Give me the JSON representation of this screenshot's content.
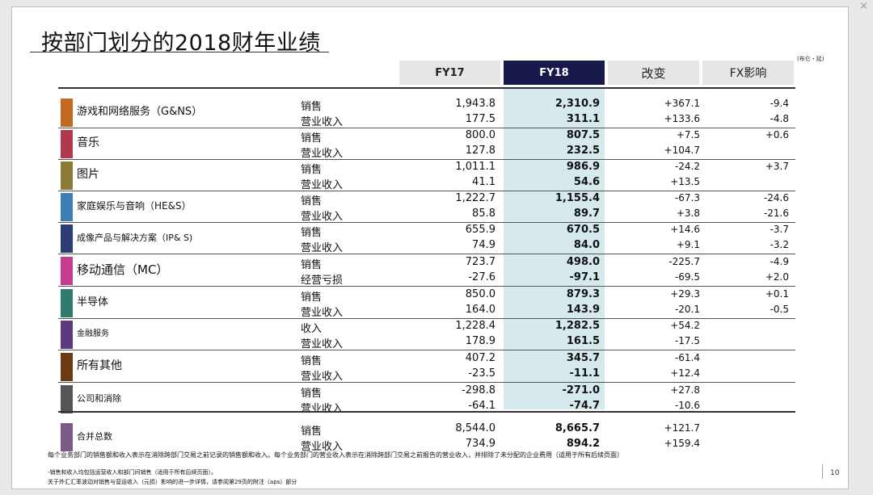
{
  "title": "按部门划分的2018财年业绩",
  "unit_note": "(布仑・延)",
  "columns": {
    "fy17": "FY17",
    "fy18": "FY18",
    "change": "改变",
    "fx": "FX影响"
  },
  "segments": [
    {
      "name": "游戏和网络服务（G&NS）",
      "color": "#c26a21",
      "m1": "销售",
      "fy17_1": "1,943.8",
      "fy18_1": "2,310.9",
      "chg_1": "+367.1",
      "fx_1": "-9.4",
      "m2": "营业收入",
      "fy17_2": "177.5",
      "fy18_2": "311.1",
      "chg_2": "+133.6",
      "fx_2": "-4.8"
    },
    {
      "name": "音乐",
      "color": "#b1394e",
      "m1": "销售",
      "fy17_1": "800.0",
      "fy18_1": "807.5",
      "chg_1": "+7.5",
      "fx_1": "+0.6",
      "m2": "营业收入",
      "fy17_2": "127.8",
      "fy18_2": "232.5",
      "chg_2": "+104.7",
      "fx_2": ""
    },
    {
      "name": "图片",
      "color": "#8d7a36",
      "m1": "销售",
      "fy17_1": "1,011.1",
      "fy18_1": "986.9",
      "chg_1": "-24.2",
      "fx_1": "+3.7",
      "m2": "营业收入",
      "fy17_2": "41.1",
      "fy18_2": "54.6",
      "chg_2": "+13.5",
      "fx_2": ""
    },
    {
      "name": "家庭娱乐与音响（HE&S）",
      "color": "#3d7fb4",
      "m1": "销售",
      "fy17_1": "1,222.7",
      "fy18_1": "1,155.4",
      "chg_1": "-67.3",
      "fx_1": "-24.6",
      "m2": "营业收入",
      "fy17_2": "85.8",
      "fy18_2": "89.7",
      "chg_2": "+3.8",
      "fx_2": "-21.6"
    },
    {
      "name": "成像产品与解决方案（IP& S)",
      "color": "#2f3d76",
      "m1": "销售",
      "fy17_1": "655.9",
      "fy18_1": "670.5",
      "chg_1": "+14.6",
      "fx_1": "-3.7",
      "m2": "营业收入",
      "fy17_2": "74.9",
      "fy18_2": "84.0",
      "chg_2": "+9.1",
      "fx_2": "-3.2"
    },
    {
      "name": "移动通信（MC）",
      "color": "#c43c8e",
      "m1": "销售",
      "fy17_1": "723.7",
      "fy18_1": "498.0",
      "chg_1": "-225.7",
      "fx_1": "-4.9",
      "m2": "经营亏损",
      "fy17_2": "-27.6",
      "fy18_2": "-97.1",
      "chg_2": "-69.5",
      "fx_2": "+2.0"
    },
    {
      "name": "半导体",
      "color": "#2f7b70",
      "m1": "销售",
      "fy17_1": "850.0",
      "fy18_1": "879.3",
      "chg_1": "+29.3",
      "fx_1": "+0.1",
      "m2": "营业收入",
      "fy17_2": "164.0",
      "fy18_2": "143.9",
      "chg_2": "-20.1",
      "fx_2": "-0.5"
    },
    {
      "name": "金融服务",
      "color": "#5a3a7b",
      "m1": "收入",
      "fy17_1": "1,228.4",
      "fy18_1": "1,282.5",
      "chg_1": "+54.2",
      "fx_1": "",
      "m2": "营业收入",
      "fy17_2": "178.9",
      "fy18_2": "161.5",
      "chg_2": "-17.5",
      "fx_2": ""
    },
    {
      "name": "所有其他",
      "color": "#6b3a14",
      "m1": "销售",
      "fy17_1": "407.2",
      "fy18_1": "345.7",
      "chg_1": "-61.4",
      "fx_1": "",
      "m2": "营业收入",
      "fy17_2": "-23.5",
      "fy18_2": "-11.1",
      "chg_2": "+12.4",
      "fx_2": ""
    },
    {
      "name": "公司和消除",
      "color": "#555555",
      "m1": "销售",
      "fy17_1": "-298.8",
      "fy18_1": "-271.0",
      "chg_1": "+27.8",
      "fx_1": "",
      "m2": "营业收入",
      "fy17_2": "-64.1",
      "fy18_2": "-74.7",
      "chg_2": "-10.6",
      "fx_2": ""
    },
    {
      "name": "合并总数",
      "color": "#7a5a86",
      "m1": "销售",
      "fy17_1": "8,544.0",
      "fy18_1": "8,665.7",
      "chg_1": "+121.7",
      "fx_1": "",
      "m2": "营业收入",
      "fy17_2": "734.9",
      "fy18_2": "894.2",
      "chg_2": "+159.4",
      "fx_2": ""
    }
  ],
  "footnotes": {
    "line1": "每个业务部门的销售额和收入表示在消除跨部门交易之前记录的销售额和收入。每个业务部门的营业收入表示在消除跨部门交易之前报告的营业收入，并排除了未分配的企业费用（适用于所有后续页面）",
    "line2": "-销售和收入均包括运营收入和部门间销售（适用于所有后续页面）。",
    "line3": "关于外汇汇率波动对销售与营运收入（元损）影响的进一步详情，请参阅第29页的附注（aps）部分"
  },
  "page_number": "10"
}
